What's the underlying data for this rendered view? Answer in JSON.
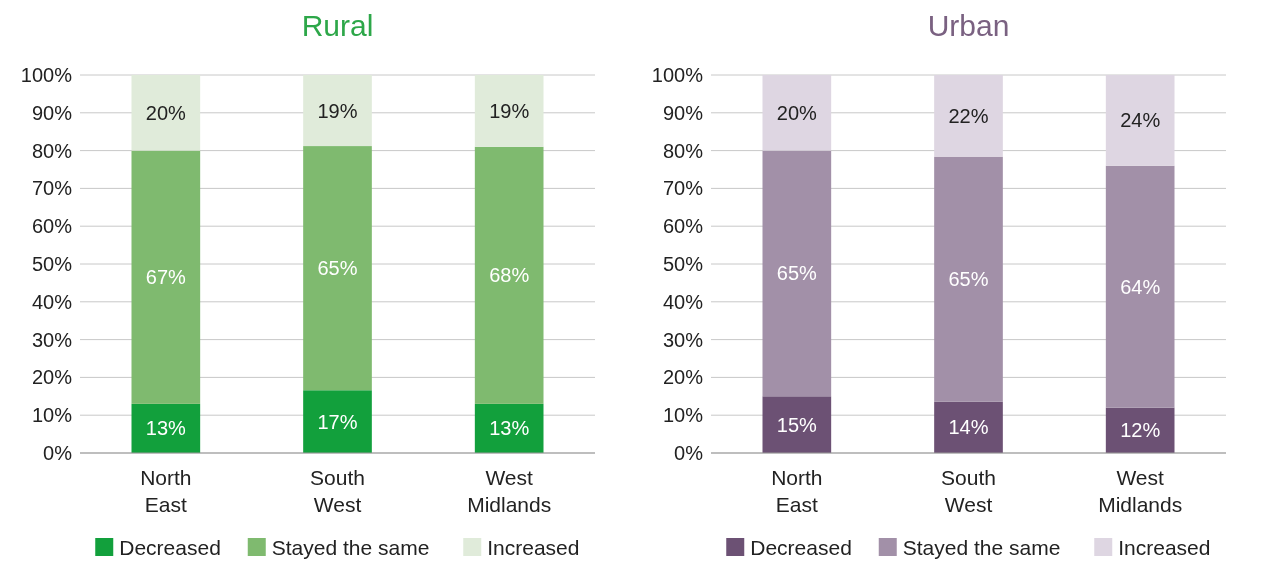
{
  "chart_data": [
    {
      "type": "bar",
      "title": "Rural",
      "stacked": true,
      "categories": [
        "North East",
        "South West",
        "West Midlands"
      ],
      "ylim": [
        0,
        100
      ],
      "yticks": [
        {
          "value": 0,
          "label": "0%"
        },
        {
          "value": 10,
          "label": "10%"
        },
        {
          "value": 20,
          "label": "20%"
        },
        {
          "value": 30,
          "label": "30%"
        },
        {
          "value": 40,
          "label": "40%"
        },
        {
          "value": 50,
          "label": "50%"
        },
        {
          "value": 60,
          "label": "60%"
        },
        {
          "value": 70,
          "label": "70%"
        },
        {
          "value": 80,
          "label": "80%"
        },
        {
          "value": 90,
          "label": "90%"
        },
        {
          "value": 100,
          "label": "100%"
        }
      ],
      "grid": "y",
      "legend": "bottom",
      "series": [
        {
          "name": "Decreased",
          "color": "#12a03c",
          "values": [
            13,
            16.6,
            13
          ],
          "value_labels": [
            "13%",
            "17%",
            "13%"
          ]
        },
        {
          "name": "Stayed the same",
          "color": "#7fba6f",
          "values": [
            67,
            64.6,
            68
          ],
          "value_labels": [
            "67%",
            "65%",
            "68%"
          ]
        },
        {
          "name": "Increased",
          "color": "#e0ebda",
          "values": [
            20,
            18.8,
            19
          ],
          "value_labels": [
            "20%",
            "19%",
            "19%"
          ]
        }
      ]
    },
    {
      "type": "bar",
      "title": "Urban",
      "stacked": true,
      "categories": [
        "North East",
        "South West",
        "West Midlands"
      ],
      "ylim": [
        0,
        100
      ],
      "yticks": [
        {
          "value": 0,
          "label": "0%"
        },
        {
          "value": 10,
          "label": "10%"
        },
        {
          "value": 20,
          "label": "20%"
        },
        {
          "value": 30,
          "label": "30%"
        },
        {
          "value": 40,
          "label": "40%"
        },
        {
          "value": 50,
          "label": "50%"
        },
        {
          "value": 60,
          "label": "60%"
        },
        {
          "value": 70,
          "label": "70%"
        },
        {
          "value": 80,
          "label": "80%"
        },
        {
          "value": 90,
          "label": "90%"
        },
        {
          "value": 100,
          "label": "100%"
        }
      ],
      "grid": "y",
      "legend": "bottom",
      "series": [
        {
          "name": "Decreased",
          "color": "#6c5174",
          "values": [
            15,
            13.6,
            12
          ],
          "value_labels": [
            "15%",
            "14%",
            "12%"
          ]
        },
        {
          "name": "Stayed the same",
          "color": "#a290a8",
          "values": [
            65,
            64.8,
            64
          ],
          "value_labels": [
            "65%",
            "65%",
            "64%"
          ]
        },
        {
          "name": "Increased",
          "color": "#ded6e2",
          "values": [
            20,
            21.6,
            24
          ],
          "value_labels": [
            "20%",
            "22%",
            "24%"
          ]
        }
      ]
    }
  ]
}
